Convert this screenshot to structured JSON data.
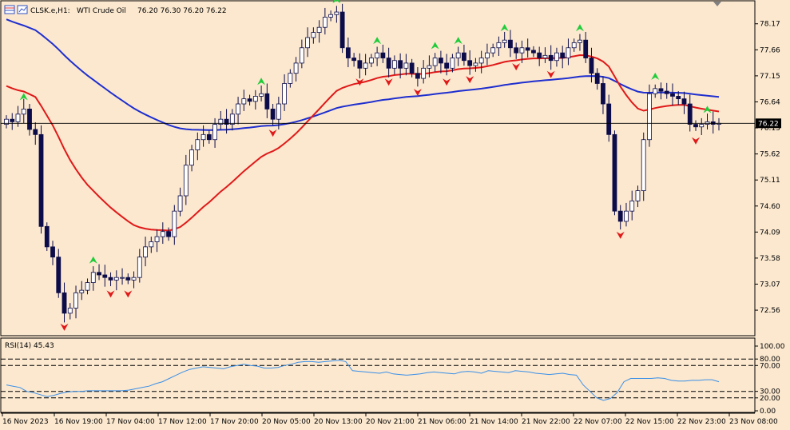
{
  "header": {
    "symbol": "CLSK.e,H1:",
    "instrument": "WTI Crude Oil",
    "ohlc": "76.20 76.30 76.20 76.22"
  },
  "rsi": {
    "label": "RSI(14) 45.43",
    "levels_printed": [
      "100.00",
      "80.00",
      "70.00",
      "30.00",
      "20.00",
      "0.00"
    ]
  },
  "colors": {
    "background": "#fbe8cf",
    "bull_candle": "#ffffff",
    "bear_candle": "#0c0c4a",
    "ma_slow": "#1f2fcf",
    "ma_fast": "#e01919",
    "rsi_line": "#3a8fe8",
    "arrow_up": "#1fcc3a",
    "arrow_down": "#e01919"
  },
  "chart_data": {
    "type": "candlestick",
    "title": "",
    "price_axis_ticks": [
      78.17,
      77.66,
      77.15,
      76.64,
      76.13,
      75.62,
      75.11,
      74.6,
      74.09,
      73.58,
      73.07,
      72.56
    ],
    "price_axis_ticks_text": [
      "78.17",
      "77.66",
      "77.15",
      "76.64",
      "76.13",
      "75.62",
      "75.11",
      "74.60",
      "74.09",
      "73.58",
      "73.07",
      "72.56"
    ],
    "ylim": [
      72.06,
      78.62
    ],
    "current_price": "76.22",
    "time_axis_labels": [
      "16 Nov 2023",
      "16 Nov 19:00",
      "17 Nov 04:00",
      "17 Nov 12:00",
      "17 Nov 20:00",
      "20 Nov 05:00",
      "20 Nov 13:00",
      "20 Nov 21:00",
      "21 Nov 06:00",
      "21 Nov 14:00",
      "21 Nov 22:00",
      "22 Nov 07:00",
      "22 Nov 15:00",
      "22 Nov 23:00",
      "23 Nov 08:00"
    ],
    "close": [
      76.3,
      76.25,
      76.4,
      76.5,
      76.1,
      76.0,
      74.2,
      73.8,
      73.6,
      72.9,
      72.5,
      72.6,
      72.9,
      72.95,
      73.1,
      73.3,
      73.25,
      73.2,
      73.15,
      73.2,
      73.2,
      73.15,
      73.2,
      73.6,
      73.8,
      73.9,
      74.0,
      74.1,
      74.0,
      74.5,
      74.8,
      75.4,
      75.7,
      75.9,
      76.0,
      75.9,
      76.2,
      76.3,
      76.2,
      76.4,
      76.6,
      76.7,
      76.65,
      76.75,
      76.8,
      76.5,
      76.3,
      76.6,
      77.0,
      77.2,
      77.4,
      77.7,
      77.9,
      78.0,
      78.1,
      78.3,
      78.35,
      78.4,
      77.7,
      77.5,
      77.45,
      77.3,
      77.4,
      77.5,
      77.6,
      77.5,
      77.3,
      77.45,
      77.3,
      77.4,
      77.2,
      77.1,
      77.3,
      77.35,
      77.5,
      77.4,
      77.3,
      77.5,
      77.6,
      77.45,
      77.35,
      77.4,
      77.5,
      77.6,
      77.7,
      77.8,
      77.85,
      77.7,
      77.6,
      77.7,
      77.65,
      77.6,
      77.5,
      77.55,
      77.45,
      77.6,
      77.5,
      77.7,
      77.8,
      77.85,
      77.5,
      77.2,
      77.0,
      76.6,
      76.0,
      74.5,
      74.3,
      74.5,
      74.7,
      74.9,
      75.9,
      76.8,
      76.9,
      76.85,
      76.8,
      76.75,
      76.7,
      76.6,
      76.2,
      76.15,
      76.2,
      76.25,
      76.2,
      76.22
    ],
    "rsi_values": [
      40,
      38,
      36,
      30,
      28,
      25,
      22,
      24,
      27,
      29,
      30,
      30,
      31,
      31,
      31,
      31,
      31,
      31,
      32,
      34,
      36,
      38,
      42,
      45,
      50,
      55,
      60,
      64,
      66,
      68,
      67,
      66,
      65,
      68,
      70,
      72,
      70,
      69,
      66,
      66,
      67,
      70,
      72,
      75,
      76,
      76,
      75,
      76,
      77,
      78,
      76,
      62,
      61,
      60,
      59,
      58,
      60,
      57,
      56,
      55,
      56,
      57,
      59,
      60,
      59,
      58,
      57,
      60,
      61,
      60,
      58,
      62,
      61,
      60,
      59,
      62,
      61,
      60,
      58,
      57,
      56,
      57,
      58,
      56,
      55,
      40,
      30,
      20,
      16,
      19,
      28,
      45,
      50,
      50,
      50,
      50,
      51,
      50,
      47,
      46,
      46,
      47,
      47,
      48,
      48,
      45
    ]
  }
}
